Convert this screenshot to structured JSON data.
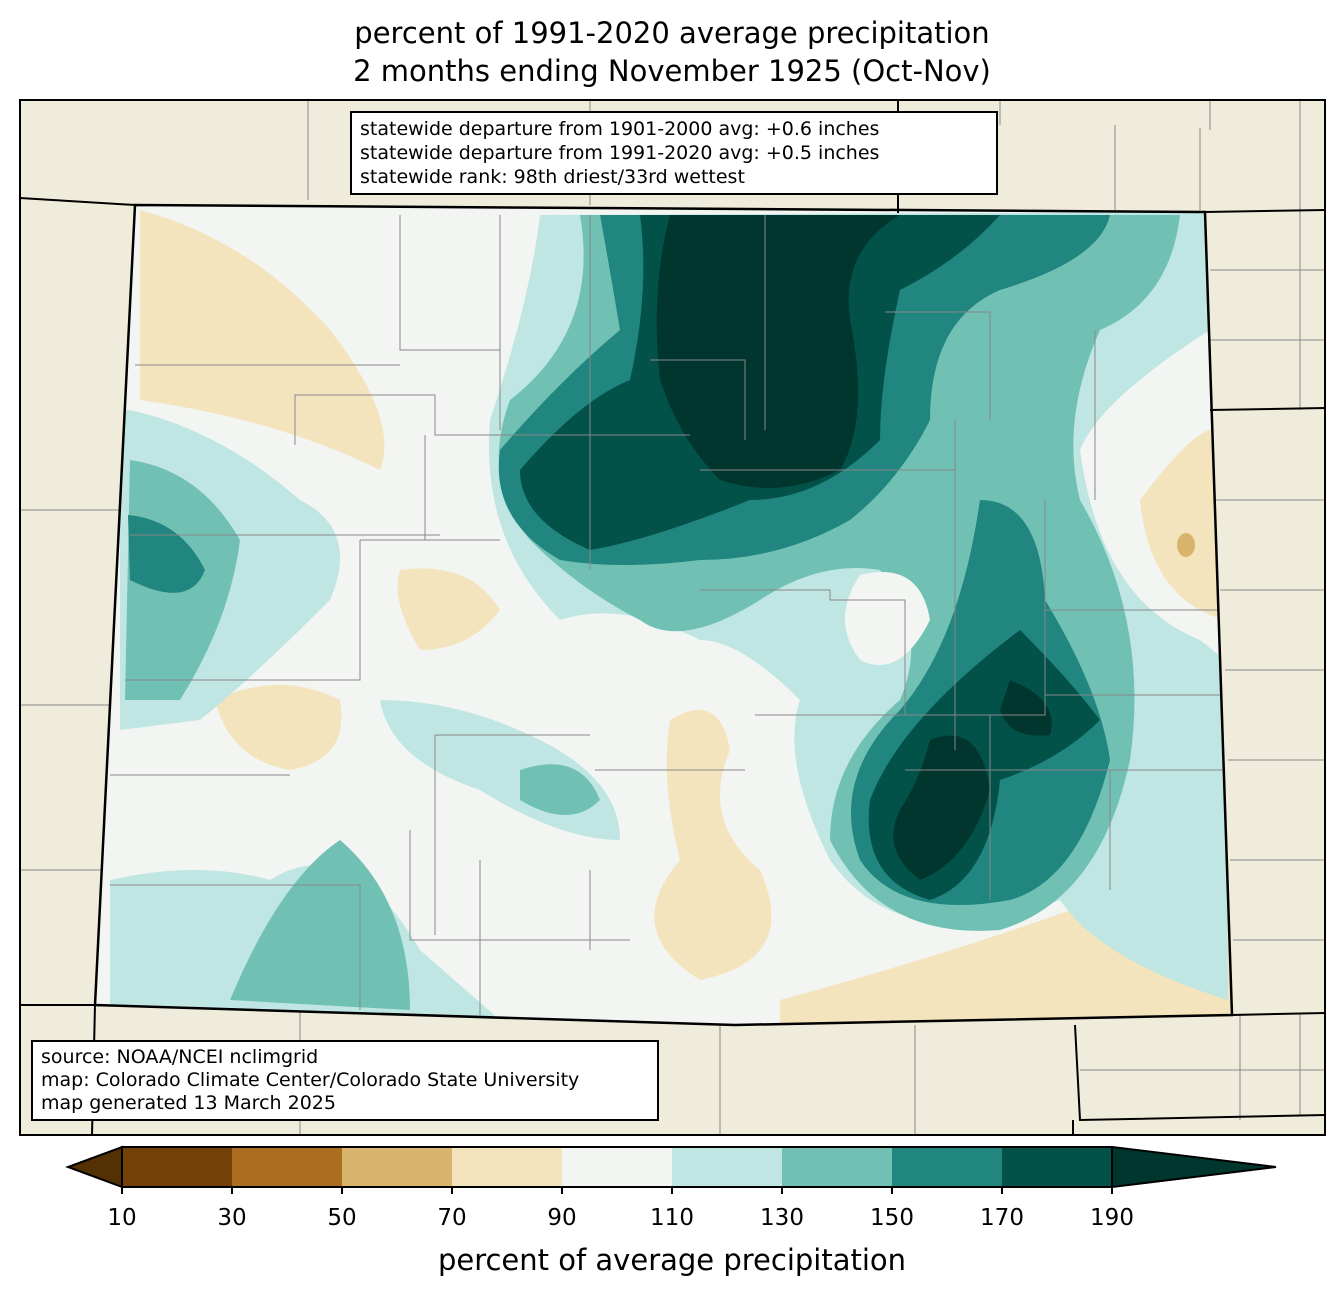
{
  "title": {
    "line1": "percent of 1991-2020 average precipitation",
    "line2": "2 months ending November 1925 (Oct-Nov)"
  },
  "stats_box": {
    "line1": "statewide departure from 1901-2000 avg: +0.6 inches",
    "line2": "statewide departure from 1991-2020 avg: +0.5 inches",
    "line3": "statewide rank: 98th driest/33rd wettest"
  },
  "source_box": {
    "line1": "source: NOAA/NCEI nclimgrid",
    "line2": "map: Colorado Climate Center/Colorado State University",
    "line3": "map generated 13 March 2025"
  },
  "colorbar": {
    "label": "percent of average precipitation",
    "ticks": [
      "10",
      "30",
      "50",
      "70",
      "90",
      "110",
      "130",
      "150",
      "170",
      "190"
    ],
    "under_color": "#543005",
    "over_color": "#00362e",
    "colors": [
      "#744109",
      "#ab6e21",
      "#d9b46d",
      "#f3e4bd",
      "#f3f5f3",
      "#bfe6e2",
      "#70c1b3",
      "#218580",
      "#02524a"
    ]
  },
  "colors": {
    "background_land": "#efecdb"
  }
}
